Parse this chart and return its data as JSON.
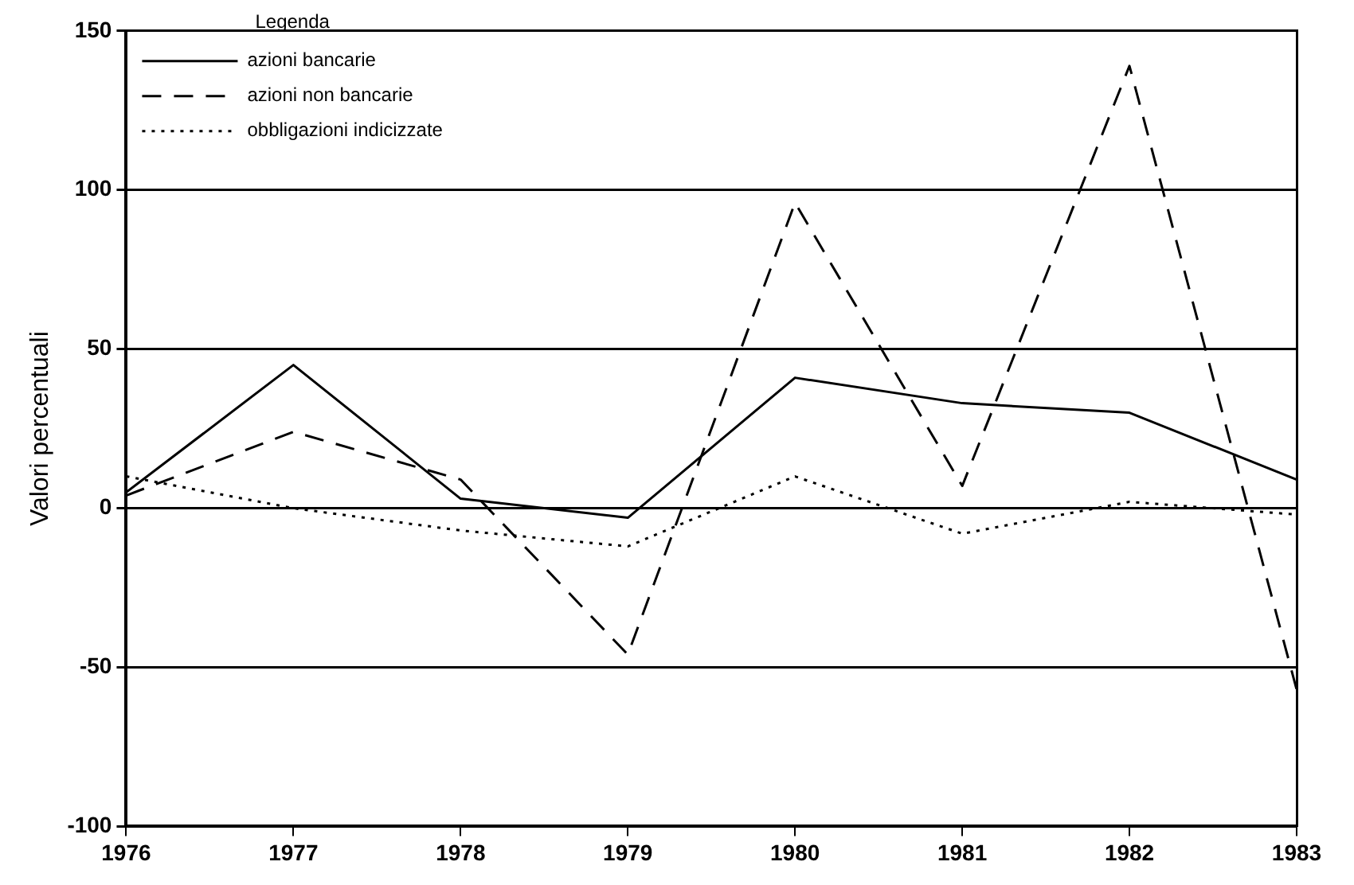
{
  "chart_data": {
    "type": "line",
    "ylabel": "Valori percentuali",
    "legend_title": "Legenda",
    "x": [
      1976,
      1977,
      1978,
      1979,
      1980,
      1981,
      1982,
      1983
    ],
    "xlim": [
      1976,
      1983
    ],
    "xticks": [
      1976,
      1977,
      1978,
      1979,
      1980,
      1981,
      1982,
      1983
    ],
    "ylim": [
      -100,
      150
    ],
    "yticks": [
      -100,
      -50,
      0,
      50,
      100,
      150
    ],
    "grid": "y",
    "legend": "top left",
    "series": [
      {
        "name": "azioni bancarie",
        "color": "#000000",
        "line_style": "solid",
        "values": [
          5,
          45,
          3,
          -3,
          41,
          33,
          30,
          9
        ]
      },
      {
        "name": "azioni non bancarie",
        "color": "#000000",
        "line_style": "dashed",
        "values": [
          4,
          24,
          9,
          -46,
          96,
          7,
          139,
          -57
        ]
      },
      {
        "name": "obbligazioni indicizzate",
        "color": "#000000",
        "line_style": "dotted",
        "values": [
          10,
          0,
          -7,
          -12,
          10,
          -8,
          2,
          -2
        ]
      }
    ]
  }
}
